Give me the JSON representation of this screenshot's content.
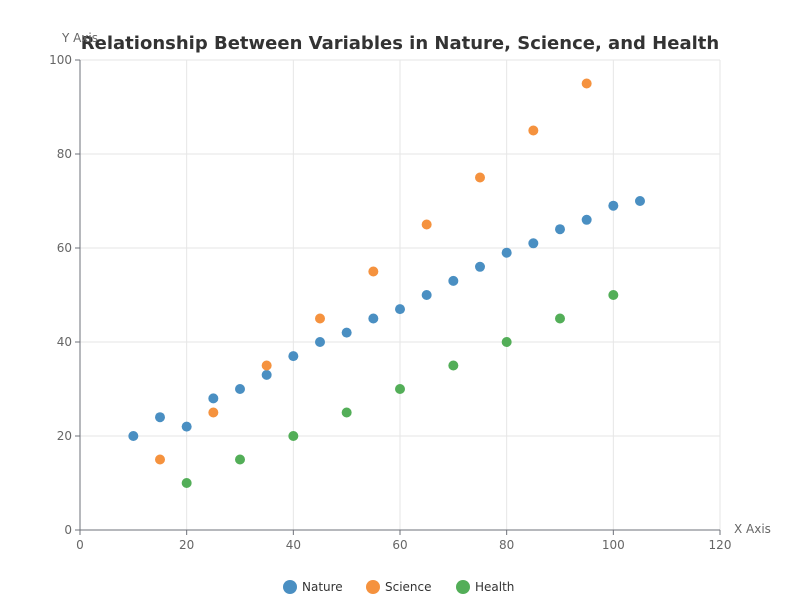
{
  "chart_data": {
    "type": "scatter",
    "title": "Relationship Between Variables in Nature, Science, and Health",
    "xlabel": "X Axis",
    "ylabel": "Y Axis",
    "xlim": [
      0,
      120
    ],
    "ylim": [
      0,
      100
    ],
    "x_ticks": [
      0,
      20,
      40,
      60,
      80,
      100,
      120
    ],
    "y_ticks": [
      0,
      20,
      40,
      60,
      80,
      100
    ],
    "grid": true,
    "legend_position": "bottom-center",
    "series": [
      {
        "name": "Nature",
        "color": "#4a8fc2",
        "points": [
          [
            10,
            20
          ],
          [
            15,
            24
          ],
          [
            20,
            22
          ],
          [
            25,
            28
          ],
          [
            30,
            30
          ],
          [
            35,
            33
          ],
          [
            40,
            37
          ],
          [
            45,
            40
          ],
          [
            50,
            42
          ],
          [
            55,
            45
          ],
          [
            60,
            47
          ],
          [
            65,
            50
          ],
          [
            70,
            53
          ],
          [
            75,
            56
          ],
          [
            80,
            59
          ],
          [
            85,
            61
          ],
          [
            90,
            64
          ],
          [
            95,
            66
          ],
          [
            100,
            69
          ],
          [
            105,
            70
          ]
        ]
      },
      {
        "name": "Science",
        "color": "#f5923e",
        "points": [
          [
            15,
            15
          ],
          [
            25,
            25
          ],
          [
            35,
            35
          ],
          [
            45,
            45
          ],
          [
            55,
            55
          ],
          [
            65,
            65
          ],
          [
            75,
            75
          ],
          [
            85,
            85
          ],
          [
            95,
            95
          ]
        ]
      },
      {
        "name": "Health",
        "color": "#53ae58",
        "points": [
          [
            20,
            10
          ],
          [
            30,
            15
          ],
          [
            40,
            20
          ],
          [
            50,
            25
          ],
          [
            60,
            30
          ],
          [
            70,
            35
          ],
          [
            80,
            40
          ],
          [
            90,
            45
          ],
          [
            100,
            50
          ]
        ]
      }
    ]
  }
}
